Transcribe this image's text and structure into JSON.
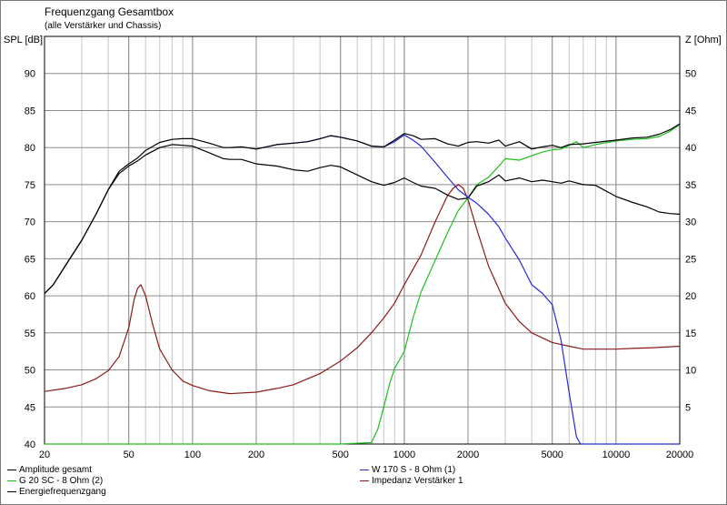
{
  "window": {
    "title": "Frequenzgang Gesamtbox",
    "subtitle": "(alle Verstärker und Chassis)"
  },
  "chart_data": {
    "type": "line",
    "title": "Frequenzgang Gesamtbox",
    "subtitle": "(alle Verstärker und Chassis)",
    "xlabel": "",
    "ylabel": "SPL [dB]",
    "y2label": "Z [Ohm]",
    "xscale": "log",
    "xlim": [
      20,
      20000
    ],
    "ylim": [
      40,
      95
    ],
    "y2lim": [
      0,
      55
    ],
    "xticks": [
      20,
      50,
      100,
      200,
      500,
      1000,
      2000,
      5000,
      10000,
      20000
    ],
    "xtick_labels": [
      "20",
      "50",
      "100",
      "200",
      "500",
      "1000",
      "2000",
      "5000",
      "10000",
      "20000"
    ],
    "yticks": [
      40,
      45,
      50,
      55,
      60,
      65,
      70,
      75,
      80,
      85,
      90
    ],
    "y2ticks": [
      5,
      10,
      15,
      20,
      25,
      30,
      35,
      40,
      45,
      50
    ],
    "grid": true,
    "legend_placement": "bottom",
    "series": [
      {
        "name": "Amplitude gesamt",
        "axis": "left",
        "color": "#000000",
        "x": [
          20,
          22,
          25,
          30,
          35,
          40,
          45,
          50,
          55,
          60,
          70,
          80,
          90,
          100,
          120,
          140,
          150,
          170,
          200,
          250,
          300,
          350,
          400,
          450,
          500,
          600,
          700,
          800,
          900,
          1000,
          1100,
          1200,
          1400,
          1600,
          1800,
          2000,
          2200,
          2500,
          2800,
          3000,
          3500,
          4000,
          4500,
          5000,
          5500,
          6000,
          7000,
          8000,
          10000,
          12000,
          14000,
          16000,
          18000,
          20000
        ],
        "y": [
          60.3,
          61.5,
          64.0,
          67.5,
          71.0,
          74.3,
          76.8,
          77.8,
          78.6,
          79.6,
          80.7,
          81.1,
          81.2,
          81.2,
          80.6,
          80.0,
          80.0,
          80.1,
          79.8,
          80.4,
          80.6,
          80.8,
          81.2,
          81.6,
          81.4,
          80.9,
          80.2,
          80.1,
          81.0,
          81.9,
          81.6,
          81.1,
          81.2,
          80.5,
          80.2,
          80.7,
          80.8,
          80.6,
          81.0,
          80.2,
          80.8,
          79.8,
          80.1,
          80.3,
          80.0,
          80.4,
          80.5,
          80.7,
          81.0,
          81.3,
          81.4,
          81.8,
          82.4,
          83.2
        ]
      },
      {
        "name": "G 20 SC - 8 Ohm (2)",
        "axis": "left",
        "color": "#1fbf1f",
        "x": [
          20,
          500,
          700,
          750,
          800,
          850,
          900,
          1000,
          1100,
          1200,
          1400,
          1600,
          1800,
          2000,
          2200,
          2500,
          2800,
          3000,
          3500,
          4000,
          4500,
          5000,
          5500,
          6000,
          6500,
          7000,
          8000,
          10000,
          12000,
          14000,
          16000,
          18000,
          20000
        ],
        "y": [
          40,
          40,
          40.2,
          42.0,
          45.0,
          48.0,
          50.2,
          52.5,
          57.0,
          60.5,
          64.8,
          68.5,
          71.5,
          73.2,
          75.0,
          76.0,
          77.5,
          78.5,
          78.3,
          78.9,
          79.4,
          79.7,
          79.8,
          80.3,
          80.8,
          80.0,
          80.4,
          80.9,
          81.1,
          81.2,
          81.5,
          82.2,
          83.1
        ]
      },
      {
        "name": "Energiefrequenzgang",
        "axis": "left",
        "color": "#000000",
        "x": [
          20,
          22,
          25,
          30,
          35,
          40,
          45,
          50,
          55,
          60,
          70,
          80,
          90,
          100,
          120,
          140,
          150,
          170,
          200,
          250,
          300,
          350,
          400,
          450,
          500,
          600,
          700,
          800,
          900,
          1000,
          1100,
          1200,
          1400,
          1600,
          1800,
          2000,
          2200,
          2500,
          2800,
          3000,
          3500,
          4000,
          4500,
          5000,
          5500,
          6000,
          7000,
          8000,
          10000,
          12000,
          14000,
          16000,
          18000,
          20000
        ],
        "y": [
          60.3,
          61.5,
          64.0,
          67.5,
          71.0,
          74.3,
          76.5,
          77.5,
          78.2,
          79.0,
          80.0,
          80.4,
          80.3,
          80.2,
          79.3,
          78.5,
          78.4,
          78.4,
          77.8,
          77.5,
          77.0,
          76.8,
          77.3,
          77.6,
          77.4,
          76.3,
          75.4,
          74.9,
          75.3,
          75.9,
          75.3,
          74.8,
          74.5,
          73.6,
          73.0,
          73.2,
          74.8,
          75.4,
          76.3,
          75.5,
          75.9,
          75.4,
          75.6,
          75.4,
          75.2,
          75.5,
          75.0,
          74.9,
          73.4,
          72.6,
          72.0,
          71.3,
          71.1,
          71.0
        ]
      },
      {
        "name": "W 170 S - 8 Ohm (1)",
        "axis": "left",
        "color": "#2a2ad4",
        "x": [
          200,
          250,
          300,
          350,
          400,
          450,
          500,
          600,
          700,
          800,
          900,
          1000,
          1100,
          1200,
          1400,
          1600,
          1800,
          2000,
          2200,
          2500,
          2800,
          3000,
          3500,
          4000,
          4500,
          5000,
          5500,
          6000,
          6500,
          6800,
          7000,
          8000,
          10000,
          12000,
          14000,
          16000,
          18000,
          20000
        ],
        "y": [
          79.8,
          80.4,
          80.6,
          80.8,
          81.2,
          81.6,
          81.4,
          80.9,
          80.2,
          80.1,
          80.8,
          81.7,
          81.0,
          80.2,
          78.0,
          76.0,
          74.3,
          73.3,
          72.5,
          71.0,
          69.3,
          67.8,
          64.8,
          61.5,
          60.3,
          58.8,
          54.0,
          47.0,
          41.0,
          40.0,
          40.0,
          40.0,
          40.0,
          40.0,
          40.0,
          40.0,
          40.0,
          40.0
        ]
      },
      {
        "name": "Impedanz Verstärker 1",
        "axis": "right",
        "color": "#8b1a1a",
        "x": [
          20,
          25,
          30,
          35,
          40,
          45,
          50,
          53,
          55,
          57,
          60,
          65,
          70,
          80,
          90,
          100,
          120,
          150,
          200,
          250,
          300,
          400,
          500,
          600,
          700,
          800,
          900,
          1000,
          1200,
          1400,
          1600,
          1700,
          1800,
          1900,
          2000,
          2200,
          2500,
          3000,
          3500,
          4000,
          5000,
          6000,
          7000,
          8000,
          10000,
          12000,
          15000,
          20000
        ],
        "y": [
          7.1,
          7.5,
          8.0,
          8.8,
          9.9,
          11.8,
          15.7,
          19.5,
          21.0,
          21.5,
          20.0,
          16.0,
          12.8,
          10.0,
          8.5,
          7.9,
          7.2,
          6.8,
          7.0,
          7.5,
          8.0,
          9.5,
          11.2,
          13.0,
          15.0,
          17.0,
          19.0,
          21.5,
          25.5,
          30.0,
          33.5,
          34.5,
          35.0,
          34.5,
          33.0,
          29.0,
          24.0,
          19.0,
          16.5,
          15.0,
          13.7,
          13.2,
          12.8,
          12.8,
          12.8,
          12.9,
          13.0,
          13.2
        ]
      }
    ]
  }
}
